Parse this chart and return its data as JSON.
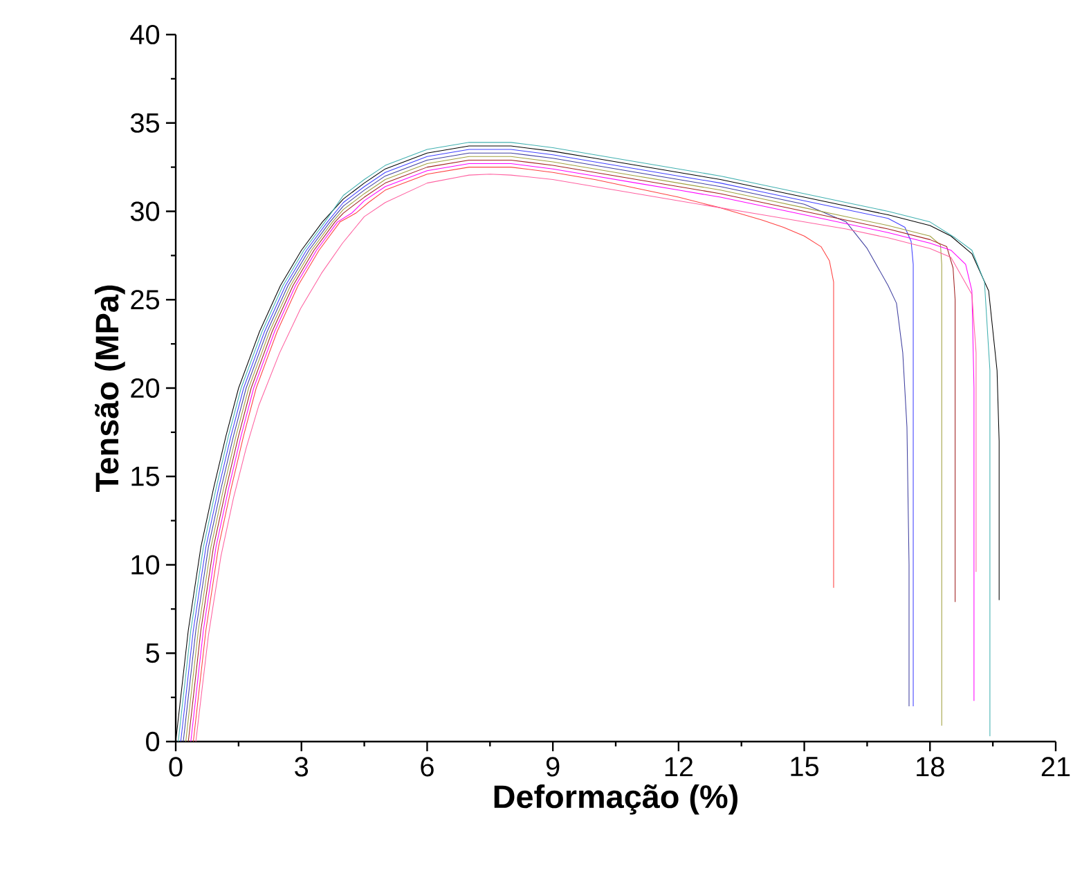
{
  "chart_data": {
    "type": "line",
    "xlabel": "Deformação (%)",
    "ylabel": "Tensão (MPa)",
    "xlim": [
      0,
      21
    ],
    "ylim": [
      0,
      40
    ],
    "xticks": [
      0,
      3,
      6,
      9,
      12,
      15,
      18,
      21
    ],
    "yticks": [
      0,
      5,
      10,
      15,
      20,
      25,
      30,
      35,
      40
    ],
    "series": [
      {
        "color": "#000000",
        "x": [
          0,
          0.3,
          0.6,
          0.9,
          1.2,
          1.5,
          2,
          2.5,
          3,
          3.5,
          4,
          4.5,
          5,
          6,
          7,
          8,
          9,
          10,
          11,
          12,
          13,
          14,
          15,
          16,
          17,
          18,
          18.5,
          19,
          19.4,
          19.6,
          19.65,
          19.65
        ],
        "values": [
          0,
          6.3,
          11,
          14.3,
          17.3,
          20,
          23.2,
          25.8,
          27.8,
          29.4,
          30.7,
          31.6,
          32.4,
          33.3,
          33.7,
          33.7,
          33.4,
          33,
          32.6,
          32.2,
          31.8,
          31.3,
          30.8,
          30.3,
          29.8,
          29.2,
          28.6,
          27.6,
          25.5,
          21,
          17,
          8
        ]
      },
      {
        "color": "#40b0b0",
        "x": [
          0.06,
          0.36,
          0.66,
          0.96,
          1.26,
          1.56,
          2.06,
          2.56,
          3.06,
          3.56,
          4,
          4.5,
          5,
          6,
          7,
          8,
          9,
          10,
          11,
          12,
          13,
          14,
          15,
          16,
          17,
          18,
          18.6,
          19,
          19.3,
          19.43,
          19.43
        ],
        "values": [
          0,
          6.3,
          11,
          14.3,
          17.3,
          20,
          23.2,
          25.8,
          27.8,
          29.4,
          30.9,
          31.8,
          32.6,
          33.5,
          33.9,
          33.9,
          33.6,
          33.2,
          32.8,
          32.4,
          32,
          31.5,
          31,
          30.5,
          30,
          29.4,
          28.5,
          27.8,
          26,
          21,
          0.3
        ]
      },
      {
        "color": "#4040ff",
        "x": [
          0.12,
          0.42,
          0.72,
          1.02,
          1.32,
          1.62,
          2.12,
          2.62,
          3.12,
          3.62,
          4,
          4.5,
          5,
          6,
          7,
          8,
          9,
          10,
          11,
          12,
          13,
          14,
          15,
          16,
          17,
          17.4,
          17.55,
          17.6,
          17.6
        ],
        "values": [
          0,
          6.3,
          11,
          14.3,
          17.3,
          20,
          23.2,
          25.8,
          27.8,
          29.4,
          30.5,
          31.4,
          32.2,
          33.1,
          33.5,
          33.5,
          33.2,
          32.8,
          32.4,
          32,
          31.6,
          31.1,
          30.6,
          30.1,
          29.6,
          29.1,
          28.3,
          27,
          2
        ]
      },
      {
        "color": "#4040a0",
        "x": [
          0.18,
          0.48,
          0.78,
          1.08,
          1.38,
          1.68,
          2.18,
          2.68,
          3.18,
          3.68,
          4,
          4.5,
          5,
          6,
          7,
          8,
          9,
          10,
          11,
          12,
          13,
          14,
          15,
          15.5,
          16,
          16.5,
          17,
          17.2,
          17.35,
          17.45,
          17.5,
          17.5
        ],
        "values": [
          0,
          6.3,
          11,
          14.3,
          17.3,
          20,
          23.2,
          25.8,
          27.8,
          29.4,
          30.3,
          31.2,
          32,
          32.9,
          33.3,
          33.3,
          33,
          32.6,
          32.2,
          31.8,
          31.4,
          30.9,
          30.4,
          29.9,
          29.4,
          27.9,
          25.8,
          24.8,
          22,
          17.8,
          10,
          2
        ]
      },
      {
        "color": "#a0a040",
        "x": [
          0.24,
          0.54,
          0.84,
          1.14,
          1.44,
          1.74,
          2.24,
          2.74,
          3.24,
          3.74,
          4,
          4.5,
          5,
          6,
          7,
          8,
          9,
          10,
          11,
          12,
          13,
          14,
          15,
          16,
          17,
          18,
          18.25,
          18.28,
          18.28
        ],
        "values": [
          0,
          6.3,
          11,
          14.3,
          17.3,
          20,
          23.2,
          25.8,
          27.8,
          29.4,
          30.1,
          31,
          31.8,
          32.7,
          33.1,
          33.1,
          32.8,
          32.4,
          32,
          31.6,
          31.2,
          30.7,
          30.2,
          29.7,
          29.2,
          28.6,
          28.1,
          27,
          0.9
        ]
      },
      {
        "color": "#a02020",
        "x": [
          0.3,
          0.6,
          0.9,
          1.2,
          1.5,
          1.8,
          2.3,
          2.8,
          3.3,
          3.8,
          4,
          4.5,
          5,
          6,
          7,
          8,
          9,
          10,
          11,
          12,
          13,
          14,
          15,
          16,
          17,
          18,
          18.4,
          18.55,
          18.6,
          18.6
        ],
        "values": [
          0,
          6.3,
          11,
          14.3,
          17.3,
          20,
          23.2,
          25.8,
          27.8,
          29.4,
          29.9,
          30.8,
          31.6,
          32.5,
          32.9,
          32.9,
          32.6,
          32.2,
          31.8,
          31.4,
          31,
          30.5,
          30,
          29.5,
          29,
          28.4,
          28,
          26.8,
          25,
          7.9
        ]
      },
      {
        "color": "#ff00ff",
        "x": [
          0.36,
          0.66,
          0.96,
          1.26,
          1.56,
          1.86,
          2.36,
          2.86,
          3.36,
          3.86,
          4.2,
          4.5,
          5,
          6,
          7,
          8,
          9,
          10,
          11,
          12,
          13,
          14,
          15,
          16,
          17,
          18,
          18.5,
          18.85,
          19,
          19.05,
          19.05
        ],
        "values": [
          0,
          6.3,
          11,
          14.3,
          17.3,
          20,
          23.2,
          25.8,
          27.8,
          29.4,
          29.9,
          30.6,
          31.4,
          32.3,
          32.7,
          32.7,
          32.4,
          32,
          31.6,
          31.2,
          30.8,
          30.3,
          29.8,
          29.3,
          28.8,
          28.2,
          27.8,
          27,
          25.5,
          20,
          2.3
        ]
      },
      {
        "color": "#ff4040",
        "x": [
          0.42,
          0.72,
          1.02,
          1.32,
          1.62,
          1.92,
          2.42,
          2.92,
          3.42,
          3.92,
          4.3,
          4.6,
          5,
          6,
          7,
          8,
          9,
          10,
          11,
          12,
          13,
          14,
          14.5,
          15,
          15.4,
          15.6,
          15.7,
          15.7
        ],
        "values": [
          0,
          6.3,
          11,
          14.3,
          17.3,
          20,
          23.2,
          25.8,
          27.8,
          29.4,
          29.9,
          30.5,
          31.2,
          32.1,
          32.5,
          32.5,
          32.2,
          31.8,
          31.3,
          30.8,
          30.2,
          29.5,
          29.1,
          28.6,
          28,
          27.2,
          26,
          8.7
        ]
      },
      {
        "color": "#ff60a0",
        "x": [
          0.48,
          0.78,
          1.08,
          1.38,
          1.68,
          1.98,
          2.48,
          2.98,
          3.48,
          3.98,
          4.5,
          5,
          6,
          7,
          7.5,
          8,
          9,
          10,
          11,
          12,
          13,
          14,
          15,
          16,
          17,
          18,
          18.5,
          19,
          19.1,
          19.1
        ],
        "values": [
          0,
          6,
          10.5,
          13.8,
          16.6,
          19,
          22,
          24.5,
          26.5,
          28.2,
          29.7,
          30.5,
          31.6,
          32.05,
          32.1,
          32.05,
          31.8,
          31.4,
          31,
          30.6,
          30.2,
          29.8,
          29.4,
          29,
          28.5,
          27.9,
          27.4,
          25.3,
          22,
          9.6
        ]
      }
    ]
  }
}
